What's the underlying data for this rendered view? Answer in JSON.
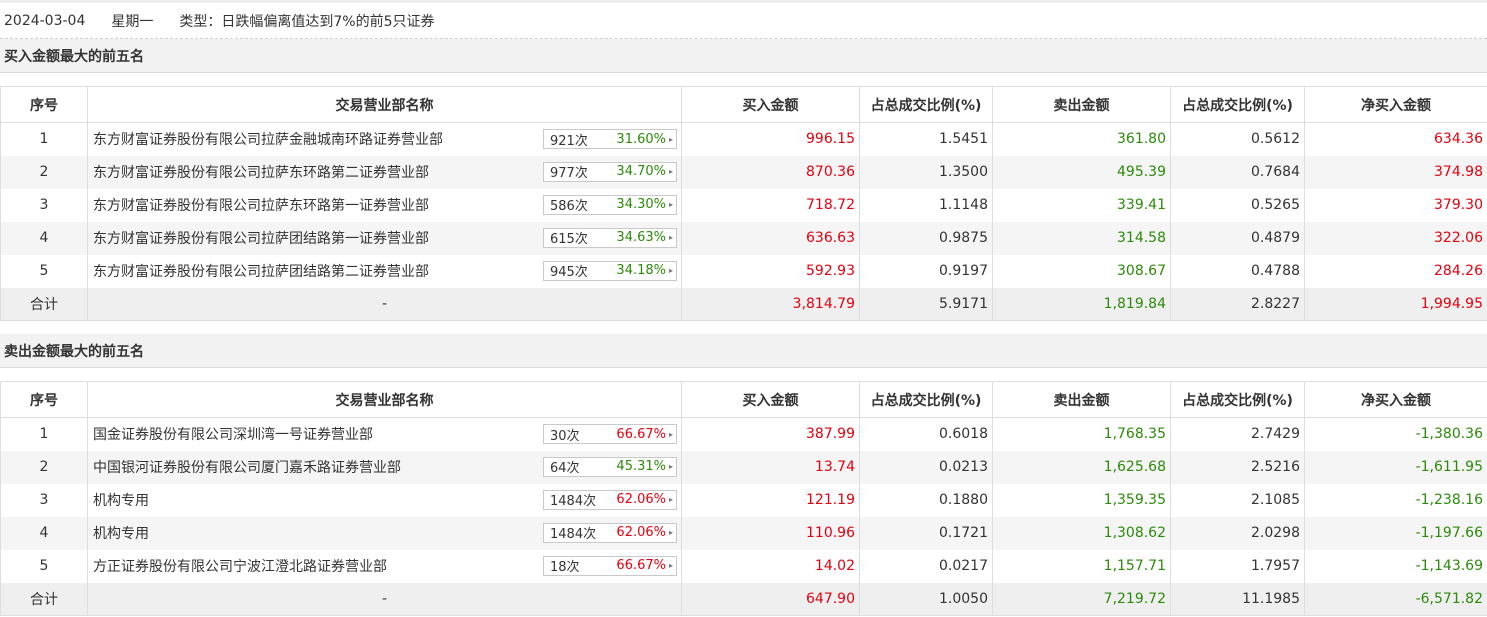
{
  "info": {
    "date": "2024-03-04",
    "weekday": "星期一",
    "type": "类型：日跌幅偏离值达到7%的前5只证券"
  },
  "headers": [
    "序号",
    "交易营业部名称",
    "买入金额",
    "占总成交比例(%)",
    "卖出金额",
    "占总成交比例(%)",
    "净买入金额"
  ],
  "colors": {
    "red": "#e4000f",
    "green": "#2c8a0a"
  },
  "buy_section": {
    "title": "买入金额最大的前五名",
    "rows": [
      {
        "idx": "1",
        "name": "东方财富证券股份有限公司拉萨金融城南环路证券营业部",
        "count": "921次",
        "rate": "31.60%",
        "rate_color": "green",
        "buy": "996.15",
        "buy_pct": "1.5451",
        "sell": "361.80",
        "sell_pct": "0.5612",
        "net": "634.36",
        "net_color": "red"
      },
      {
        "idx": "2",
        "name": "东方财富证券股份有限公司拉萨东环路第二证券营业部",
        "count": "977次",
        "rate": "34.70%",
        "rate_color": "green",
        "buy": "870.36",
        "buy_pct": "1.3500",
        "sell": "495.39",
        "sell_pct": "0.7684",
        "net": "374.98",
        "net_color": "red"
      },
      {
        "idx": "3",
        "name": "东方财富证券股份有限公司拉萨东环路第一证券营业部",
        "count": "586次",
        "rate": "34.30%",
        "rate_color": "green",
        "buy": "718.72",
        "buy_pct": "1.1148",
        "sell": "339.41",
        "sell_pct": "0.5265",
        "net": "379.30",
        "net_color": "red"
      },
      {
        "idx": "4",
        "name": "东方财富证券股份有限公司拉萨团结路第一证券营业部",
        "count": "615次",
        "rate": "34.63%",
        "rate_color": "green",
        "buy": "636.63",
        "buy_pct": "0.9875",
        "sell": "314.58",
        "sell_pct": "0.4879",
        "net": "322.06",
        "net_color": "red"
      },
      {
        "idx": "5",
        "name": "东方财富证券股份有限公司拉萨团结路第二证券营业部",
        "count": "945次",
        "rate": "34.18%",
        "rate_color": "green",
        "buy": "592.93",
        "buy_pct": "0.9197",
        "sell": "308.67",
        "sell_pct": "0.4788",
        "net": "284.26",
        "net_color": "red"
      }
    ],
    "total": {
      "label": "合计",
      "name": "-",
      "buy": "3,814.79",
      "buy_pct": "5.9171",
      "sell": "1,819.84",
      "sell_pct": "2.8227",
      "net": "1,994.95",
      "net_color": "red"
    }
  },
  "sell_section": {
    "title": "卖出金额最大的前五名",
    "rows": [
      {
        "idx": "1",
        "name": "国金证券股份有限公司深圳湾一号证券营业部",
        "count": "30次",
        "rate": "66.67%",
        "rate_color": "red",
        "buy": "387.99",
        "buy_pct": "0.6018",
        "sell": "1,768.35",
        "sell_pct": "2.7429",
        "net": "-1,380.36",
        "net_color": "green"
      },
      {
        "idx": "2",
        "name": "中国银河证券股份有限公司厦门嘉禾路证券营业部",
        "count": "64次",
        "rate": "45.31%",
        "rate_color": "green",
        "buy": "13.74",
        "buy_pct": "0.0213",
        "sell": "1,625.68",
        "sell_pct": "2.5216",
        "net": "-1,611.95",
        "net_color": "green"
      },
      {
        "idx": "3",
        "name": "机构专用",
        "count": "1484次",
        "rate": "62.06%",
        "rate_color": "red",
        "buy": "121.19",
        "buy_pct": "0.1880",
        "sell": "1,359.35",
        "sell_pct": "2.1085",
        "net": "-1,238.16",
        "net_color": "green"
      },
      {
        "idx": "4",
        "name": "机构专用",
        "count": "1484次",
        "rate": "62.06%",
        "rate_color": "red",
        "buy": "110.96",
        "buy_pct": "0.1721",
        "sell": "1,308.62",
        "sell_pct": "2.0298",
        "net": "-1,197.66",
        "net_color": "green"
      },
      {
        "idx": "5",
        "name": "方正证券股份有限公司宁波江澄北路证券营业部",
        "count": "18次",
        "rate": "66.67%",
        "rate_color": "red",
        "buy": "14.02",
        "buy_pct": "0.0217",
        "sell": "1,157.71",
        "sell_pct": "1.7957",
        "net": "-1,143.69",
        "net_color": "green"
      }
    ],
    "total": {
      "label": "合计",
      "name": "-",
      "buy": "647.90",
      "buy_pct": "1.0050",
      "sell": "7,219.72",
      "sell_pct": "11.1985",
      "net": "-6,571.82",
      "net_color": "green"
    }
  }
}
